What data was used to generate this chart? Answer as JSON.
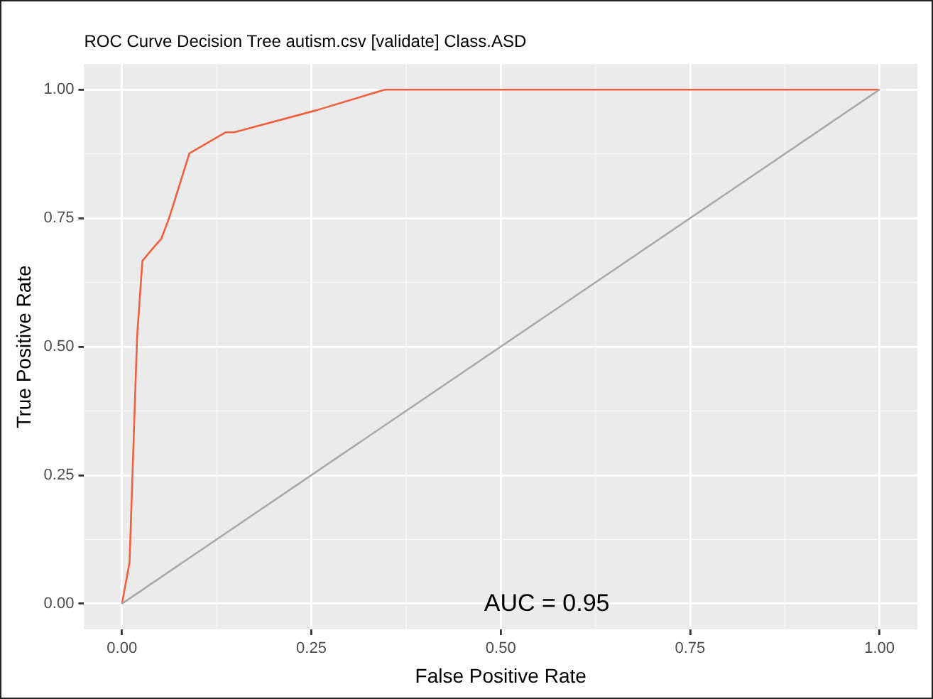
{
  "chart_data": {
    "type": "line",
    "title": "ROC Curve Decision Tree autism.csv [validate] Class.ASD",
    "xlabel": "False Positive Rate",
    "ylabel": "True Positive Rate",
    "series": [
      {
        "color": "#f0603f",
        "x": [
          0,
          0.01,
          0.02,
          0.027,
          0.043,
          0.052,
          0.062,
          0.089,
          0.137,
          0.148,
          0.257,
          0.347,
          1
        ],
        "values": [
          0,
          0.08,
          0.52,
          0.667,
          0.695,
          0.71,
          0.749,
          0.876,
          0.917,
          0.917,
          0.96,
          1,
          1
        ]
      },
      {
        "color": "#aaaaaa",
        "x": [
          0,
          1
        ],
        "values": [
          0,
          1
        ]
      }
    ],
    "annotations": [
      "AUC = 0.95"
    ],
    "xlim": [
      -0.05,
      1.05
    ],
    "ylim": [
      -0.05,
      1.05
    ],
    "xticks": [
      {
        "value": 0,
        "label": "0.00"
      },
      {
        "value": 0.25,
        "label": "0.25"
      },
      {
        "value": 0.5,
        "label": "0.50"
      },
      {
        "value": 0.75,
        "label": "0.75"
      },
      {
        "value": 1,
        "label": "1.00"
      }
    ],
    "yticks": [
      {
        "value": 0,
        "label": "0.00"
      },
      {
        "value": 0.25,
        "label": "0.25"
      },
      {
        "value": 0.5,
        "label": "0.50"
      },
      {
        "value": 0.75,
        "label": "0.75"
      },
      {
        "value": 1,
        "label": "1.00"
      }
    ],
    "grid": true,
    "marker": "none",
    "line_style": "solid",
    "legend": false
  }
}
